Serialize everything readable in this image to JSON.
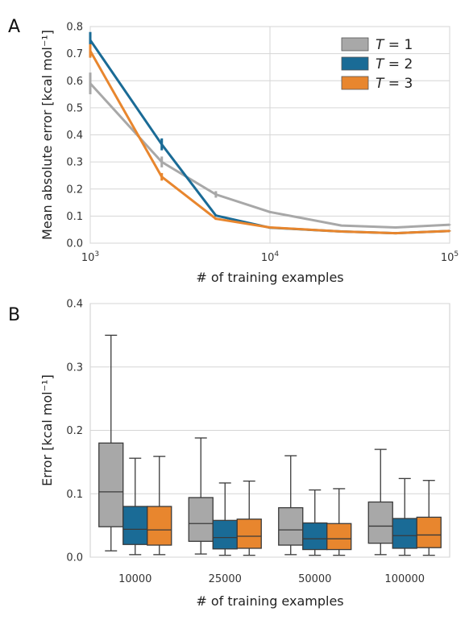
{
  "chart_data": [
    {
      "panel": "A",
      "type": "line",
      "xlabel": "# of training examples",
      "ylabel": "Mean absolute error [kcal mol⁻¹]",
      "xscale": "log",
      "xlim": [
        1000,
        100000
      ],
      "ylim": [
        0,
        0.8
      ],
      "grid": true,
      "legend_position": "top-right",
      "x_ticks": [
        1000,
        10000,
        100000
      ],
      "x_tick_bases": [
        "10",
        "10",
        "10"
      ],
      "x_tick_exps": [
        "3",
        "4",
        "5"
      ],
      "y_ticks": [
        "0.0",
        "0.1",
        "0.2",
        "0.3",
        "0.4",
        "0.5",
        "0.6",
        "0.7",
        "0.8"
      ],
      "x": [
        1000,
        2500,
        5000,
        10000,
        25000,
        50000,
        100000
      ],
      "series": [
        {
          "name": "T = 1",
          "name_var": "T",
          "name_rest": " = 1",
          "color": "#a8a8a8",
          "values": [
            0.59,
            0.3,
            0.18,
            0.115,
            0.065,
            0.058,
            0.068
          ],
          "errors": [
            0.04,
            0.02,
            0.012,
            0.004,
            0.003,
            0.002,
            0.002
          ]
        },
        {
          "name": "T = 2",
          "name_var": "T",
          "name_rest": " = 2",
          "color": "#1a6b96",
          "values": [
            0.75,
            0.365,
            0.102,
            0.057,
            0.043,
            0.037,
            0.045
          ],
          "errors": [
            0.03,
            0.022,
            0.004,
            0.002,
            0.002,
            0.002,
            0.002
          ]
        },
        {
          "name": "T = 3",
          "name_var": "T",
          "name_rest": " = 3",
          "color": "#e8862e",
          "values": [
            0.71,
            0.245,
            0.09,
            0.058,
            0.043,
            0.037,
            0.045
          ],
          "errors": [
            0.025,
            0.014,
            0.004,
            0.002,
            0.002,
            0.002,
            0.002
          ]
        }
      ]
    },
    {
      "panel": "B",
      "type": "box",
      "xlabel": "# of training examples",
      "ylabel": "Error [kcal mol⁻¹]",
      "ylim": [
        0,
        0.4
      ],
      "grid": true,
      "y_ticks": [
        "0.0",
        "0.1",
        "0.2",
        "0.3",
        "0.4"
      ],
      "categories": [
        "10000",
        "25000",
        "50000",
        "100000"
      ],
      "series": [
        {
          "name": "T = 1",
          "color": "#a8a8a8",
          "boxes": [
            {
              "min": 0.01,
              "q1": 0.048,
              "median": 0.103,
              "q3": 0.18,
              "max": 0.35
            },
            {
              "min": 0.005,
              "q1": 0.025,
              "median": 0.053,
              "q3": 0.094,
              "max": 0.188
            },
            {
              "min": 0.004,
              "q1": 0.019,
              "median": 0.043,
              "q3": 0.078,
              "max": 0.16
            },
            {
              "min": 0.004,
              "q1": 0.022,
              "median": 0.049,
              "q3": 0.087,
              "max": 0.17
            }
          ]
        },
        {
          "name": "T = 2",
          "color": "#1a6b96",
          "boxes": [
            {
              "min": 0.004,
              "q1": 0.02,
              "median": 0.044,
              "q3": 0.08,
              "max": 0.156
            },
            {
              "min": 0.003,
              "q1": 0.013,
              "median": 0.031,
              "q3": 0.058,
              "max": 0.117
            },
            {
              "min": 0.003,
              "q1": 0.012,
              "median": 0.029,
              "q3": 0.054,
              "max": 0.106
            },
            {
              "min": 0.003,
              "q1": 0.014,
              "median": 0.034,
              "q3": 0.061,
              "max": 0.124
            }
          ]
        },
        {
          "name": "T = 3",
          "color": "#e8862e",
          "boxes": [
            {
              "min": 0.004,
              "q1": 0.019,
              "median": 0.043,
              "q3": 0.08,
              "max": 0.159
            },
            {
              "min": 0.003,
              "q1": 0.014,
              "median": 0.033,
              "q3": 0.06,
              "max": 0.12
            },
            {
              "min": 0.003,
              "q1": 0.012,
              "median": 0.029,
              "q3": 0.053,
              "max": 0.108
            },
            {
              "min": 0.003,
              "q1": 0.015,
              "median": 0.035,
              "q3": 0.063,
              "max": 0.121
            }
          ]
        }
      ]
    }
  ]
}
